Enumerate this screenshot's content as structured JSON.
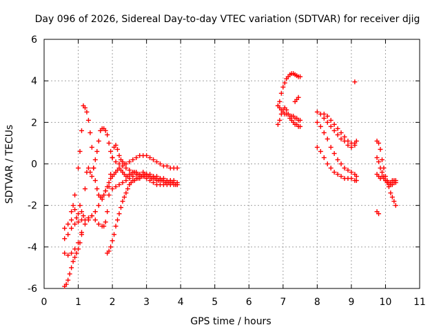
{
  "chart_data": {
    "type": "scatter",
    "title": "Day 096 of 2026, Sidereal Day-to-day VTEC variation (SDTVAR) for receiver djig",
    "xlabel": "GPS time / hours",
    "ylabel": "SDTVAR / TECUs",
    "xlim": [
      0,
      11
    ],
    "ylim": [
      -6,
      6
    ],
    "x_ticks": [
      0,
      1,
      2,
      3,
      4,
      5,
      6,
      7,
      8,
      9,
      10,
      11
    ],
    "y_ticks": [
      -6,
      -4,
      -2,
      0,
      2,
      4,
      6
    ],
    "grid": true,
    "marker": "plus",
    "color": "#ff0000",
    "series": [
      {
        "name": "s1",
        "x": [
          0.6,
          0.7,
          0.8,
          0.9,
          1.0,
          1.05,
          1.1,
          1.15,
          1.2,
          1.25,
          1.3,
          1.35,
          1.4,
          1.45,
          1.5,
          1.55,
          1.6,
          1.65,
          1.7,
          1.75,
          1.8,
          1.85,
          1.9,
          1.95,
          2.0,
          2.05,
          2.1,
          2.15,
          2.2,
          2.25,
          2.3,
          2.35,
          2.4,
          2.45,
          2.5,
          2.55,
          2.6,
          2.65,
          2.7,
          2.75,
          2.8,
          2.85,
          2.9,
          2.95,
          3.0,
          3.05,
          3.1,
          3.15,
          3.2,
          3.25,
          3.3,
          3.35,
          3.4,
          3.45,
          3.5,
          3.55,
          3.6,
          3.65,
          3.7,
          3.75,
          3.8,
          3.85,
          3.9
        ],
        "y": [
          -3.1,
          -2.9,
          -2.7,
          -1.5,
          -0.2,
          0.6,
          1.6,
          2.8,
          2.7,
          2.5,
          2.1,
          1.5,
          0.8,
          -0.2,
          -0.8,
          -1.2,
          -1.5,
          -1.6,
          -1.7,
          -1.5,
          -1.3,
          -1.1,
          -0.9,
          -0.7,
          -0.6,
          -0.5,
          -0.4,
          -0.3,
          -0.2,
          -0.3,
          -0.4,
          -0.5,
          -0.6,
          -0.6,
          -0.5,
          -0.5,
          -0.4,
          -0.4,
          -0.5,
          -0.5,
          -0.6,
          -0.6,
          -0.6,
          -0.5,
          -0.5,
          -0.6,
          -0.6,
          -0.7,
          -0.7,
          -0.7,
          -0.8,
          -0.8,
          -0.8,
          -0.8,
          -0.8,
          -0.9,
          -0.9,
          -0.9,
          -0.9,
          -0.9,
          -0.9,
          -1.0,
          -1.0
        ]
      },
      {
        "name": "s2",
        "x": [
          0.6,
          0.65,
          0.7,
          0.75,
          0.8,
          0.85,
          0.9,
          0.95,
          1.0,
          1.05,
          1.1,
          1.15,
          1.2,
          1.25,
          1.3,
          1.35,
          1.4,
          1.45,
          1.5,
          1.55,
          1.6,
          1.65,
          1.7,
          1.75,
          1.8,
          1.85,
          1.9,
          1.95,
          2.0,
          2.1,
          2.2,
          2.3,
          2.4,
          2.5,
          2.6,
          2.7,
          2.8,
          2.9,
          3.0,
          3.1,
          3.2,
          3.3,
          3.4,
          3.5,
          3.6,
          3.7,
          3.8
        ],
        "y": [
          -5.9,
          -5.8,
          -5.6,
          -5.3,
          -5.0,
          -4.7,
          -4.5,
          -4.3,
          -4.1,
          -3.8,
          -3.4,
          -2.5,
          -1.2,
          -0.4,
          -0.2,
          -0.4,
          -0.6,
          -0.2,
          0.2,
          0.6,
          1.1,
          1.6,
          1.7,
          1.7,
          1.6,
          1.4,
          1.0,
          0.6,
          0.3,
          0.1,
          0.0,
          -0.1,
          -0.2,
          -0.3,
          -0.4,
          -0.4,
          -0.5,
          -0.5,
          -0.5,
          -0.6,
          -0.6,
          -0.7,
          -0.7,
          -0.8,
          -0.8,
          -0.8,
          -0.8
        ]
      },
      {
        "name": "s3",
        "x": [
          0.6,
          0.7,
          0.8,
          0.9,
          1.0,
          1.1,
          1.2,
          1.3,
          1.4,
          1.5,
          1.6,
          1.7,
          1.75,
          1.8,
          1.85,
          1.9,
          1.95,
          2.0,
          2.05,
          2.1,
          2.15,
          2.2,
          2.25,
          2.3,
          2.35,
          2.4,
          2.5,
          2.6,
          2.7,
          2.8,
          2.9,
          3.0,
          3.1,
          3.2,
          3.3,
          3.4,
          3.5,
          3.6,
          3.7,
          3.8,
          3.9
        ],
        "y": [
          -4.3,
          -4.4,
          -4.3,
          -4.1,
          -3.8,
          -3.3,
          -2.9,
          -2.7,
          -2.5,
          -2.7,
          -2.9,
          -3.0,
          -3.0,
          -2.8,
          -2.3,
          -1.5,
          -0.5,
          0.3,
          0.8,
          0.9,
          0.7,
          0.4,
          0.2,
          0.1,
          0.0,
          0.0,
          0.1,
          0.2,
          0.3,
          0.4,
          0.4,
          0.4,
          0.3,
          0.2,
          0.1,
          0.0,
          -0.1,
          -0.1,
          -0.2,
          -0.2,
          -0.2
        ]
      },
      {
        "name": "s4",
        "x": [
          0.6,
          0.7,
          0.8,
          0.9,
          1.0,
          1.1,
          1.2,
          1.3,
          1.4,
          1.5,
          1.6,
          1.7,
          1.8,
          1.9,
          2.0,
          2.1,
          2.2,
          2.3,
          2.4,
          2.5,
          2.6,
          2.7,
          2.8,
          2.9,
          3.0,
          3.1,
          3.2,
          3.3,
          3.4,
          3.5,
          3.6,
          3.7,
          3.8,
          3.9
        ],
        "y": [
          -3.6,
          -3.4,
          -3.1,
          -2.9,
          -2.8,
          -2.7,
          -2.7,
          -2.6,
          -2.5,
          -2.3,
          -2.0,
          -1.6,
          -1.3,
          -1.1,
          -1.2,
          -1.1,
          -1.0,
          -0.9,
          -0.8,
          -0.7,
          -0.6,
          -0.5,
          -0.5,
          -0.4,
          -0.5,
          -0.5,
          -0.6,
          -0.6,
          -0.7,
          -0.7,
          -0.8,
          -0.8,
          -0.9,
          -0.9
        ]
      },
      {
        "name": "s5",
        "x": [
          1.85,
          1.9,
          1.95,
          2.0,
          2.05,
          2.1,
          2.15,
          2.2,
          2.25,
          2.3,
          2.35,
          2.4,
          2.45,
          2.5,
          2.55,
          2.6,
          2.65,
          2.7,
          2.75,
          2.8,
          2.85,
          2.9,
          2.95,
          3.0,
          3.1,
          3.2,
          3.3,
          3.4,
          3.5,
          3.6,
          3.7,
          3.8,
          3.9
        ],
        "y": [
          -4.3,
          -4.2,
          -4.0,
          -3.7,
          -3.4,
          -3.0,
          -2.7,
          -2.4,
          -2.1,
          -1.8,
          -1.6,
          -1.4,
          -1.2,
          -1.0,
          -0.9,
          -0.8,
          -0.8,
          -0.7,
          -0.7,
          -0.7,
          -0.6,
          -0.6,
          -0.6,
          -0.7,
          -0.8,
          -0.9,
          -1.0,
          -1.0,
          -1.0,
          -1.0,
          -1.0,
          -1.0,
          -1.0
        ]
      },
      {
        "name": "s6",
        "x": [
          0.8,
          0.85,
          0.9,
          0.95,
          1.0,
          1.05,
          1.1
        ],
        "y": [
          -2.3,
          -2.0,
          -2.2,
          -2.6,
          -2.4,
          -2.0,
          -2.3
        ]
      },
      {
        "name": "s7",
        "x": [
          6.85,
          6.9,
          6.95,
          7.0,
          7.05,
          7.1,
          7.15,
          7.2,
          7.25,
          7.3,
          7.35,
          7.4,
          7.45,
          7.5
        ],
        "y": [
          2.8,
          3.0,
          3.4,
          3.7,
          3.9,
          4.1,
          4.2,
          4.3,
          4.35,
          4.35,
          4.3,
          4.25,
          4.2,
          4.2
        ]
      },
      {
        "name": "s8",
        "x": [
          6.85,
          6.9,
          6.95,
          7.0,
          7.05,
          7.1,
          7.15,
          7.2,
          7.25,
          7.3,
          7.35,
          7.4,
          7.45,
          7.5
        ],
        "y": [
          1.9,
          2.1,
          2.4,
          2.6,
          2.7,
          2.6,
          2.4,
          2.2,
          2.1,
          2.0,
          1.9,
          1.9,
          1.8,
          1.8
        ]
      },
      {
        "name": "s9",
        "x": [
          6.85,
          6.9,
          6.95,
          7.0,
          7.05,
          7.1,
          7.15,
          7.2,
          7.25,
          7.3,
          7.35,
          7.4,
          7.45,
          7.5
        ],
        "y": [
          2.8,
          2.7,
          2.6,
          2.5,
          2.4,
          2.4,
          2.4,
          2.3,
          2.3,
          2.3,
          2.2,
          2.2,
          2.1,
          2.1
        ]
      },
      {
        "name": "s10",
        "x": [
          7.35,
          7.4,
          7.45
        ],
        "y": [
          3.0,
          3.1,
          3.2
        ]
      },
      {
        "name": "s11",
        "x": [
          8.0,
          8.1,
          8.2,
          8.3,
          8.4,
          8.5,
          8.6,
          8.7,
          8.8,
          8.9,
          9.0,
          9.1,
          9.15
        ],
        "y": [
          2.5,
          2.4,
          2.2,
          2.0,
          1.8,
          1.6,
          1.4,
          1.2,
          1.1,
          0.9,
          0.8,
          0.9,
          1.1
        ]
      },
      {
        "name": "s12",
        "x": [
          8.0,
          8.1,
          8.2,
          8.3,
          8.4,
          8.5,
          8.6,
          8.7,
          8.8,
          8.9,
          9.0,
          9.1,
          9.15
        ],
        "y": [
          2.0,
          1.8,
          1.5,
          1.2,
          0.8,
          0.5,
          0.2,
          0.0,
          -0.2,
          -0.3,
          -0.4,
          -0.5,
          -0.6
        ]
      },
      {
        "name": "s13",
        "x": [
          8.0,
          8.1,
          8.2,
          8.3,
          8.4,
          8.5,
          8.6,
          8.7,
          8.8,
          8.9,
          9.0,
          9.1,
          9.15
        ],
        "y": [
          0.8,
          0.6,
          0.3,
          0.0,
          -0.2,
          -0.4,
          -0.5,
          -0.6,
          -0.7,
          -0.7,
          -0.7,
          -0.8,
          -0.8
        ]
      },
      {
        "name": "s14",
        "x": [
          8.2,
          8.3,
          8.4,
          8.5,
          8.6,
          8.7,
          8.8,
          8.9,
          9.0,
          9.1
        ],
        "y": [
          2.4,
          2.3,
          2.1,
          1.9,
          1.7,
          1.5,
          1.3,
          1.1,
          1.0,
          1.0
        ]
      },
      {
        "name": "s15",
        "x": [
          9.75,
          9.8,
          9.85,
          9.9,
          9.95,
          10.0,
          10.05,
          10.1,
          10.15,
          10.2,
          10.25,
          10.3
        ],
        "y": [
          1.1,
          1.0,
          0.7,
          0.2,
          -0.2,
          -0.6,
          -0.9,
          -1.1,
          -1.4,
          -1.6,
          -1.8,
          -2.0
        ]
      },
      {
        "name": "s16",
        "x": [
          9.75,
          9.8,
          9.85,
          9.9,
          9.95,
          10.0,
          10.05,
          10.1,
          10.15,
          10.2,
          10.25,
          10.3
        ],
        "y": [
          -0.5,
          -0.6,
          -0.7,
          -0.6,
          -0.7,
          -0.8,
          -0.8,
          -0.9,
          -0.9,
          -0.8,
          -0.8,
          -0.8
        ]
      },
      {
        "name": "s17",
        "x": [
          9.75,
          9.8,
          9.85,
          9.9,
          9.95,
          10.0,
          10.05,
          10.1,
          10.15,
          10.2,
          10.25,
          10.3
        ],
        "y": [
          0.3,
          0.1,
          -0.2,
          -0.4,
          -0.6,
          -0.8,
          -0.9,
          -1.0,
          -1.0,
          -1.0,
          -0.9,
          -0.9
        ]
      },
      {
        "name": "s18",
        "x": [
          9.75,
          9.8
        ],
        "y": [
          -2.3,
          -2.4
        ]
      },
      {
        "name": "s19",
        "x": [
          9.1
        ],
        "y": [
          3.95
        ]
      }
    ]
  }
}
